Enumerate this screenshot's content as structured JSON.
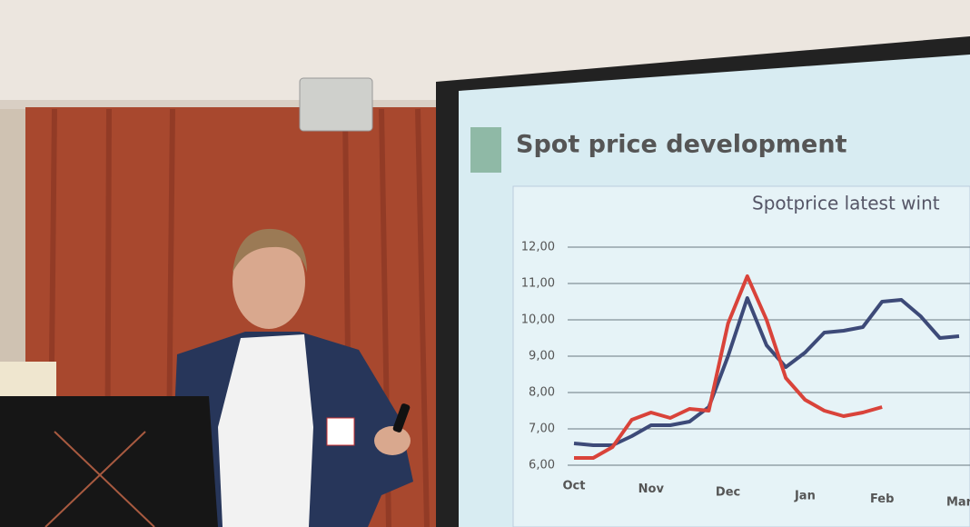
{
  "chart_data": {
    "type": "line",
    "title": "Spot price development",
    "subtitle": "Spotprice latest wint",
    "categories": [
      "Oct",
      null,
      null,
      null,
      "Nov",
      null,
      null,
      null,
      "Dec",
      null,
      null,
      null,
      "Jan",
      null,
      null,
      null,
      "Feb",
      null,
      null,
      null,
      "Mar"
    ],
    "series": [
      {
        "color": "#3d4a78",
        "values": [
          6.6,
          6.55,
          6.55,
          6.8,
          7.1,
          7.1,
          7.2,
          7.6,
          9.0,
          10.6,
          9.3,
          8.7,
          9.1,
          9.65,
          9.7,
          9.8,
          10.5,
          10.55,
          10.1,
          9.5,
          9.55
        ]
      },
      {
        "color": "#d9433a",
        "values": [
          6.2,
          6.2,
          6.5,
          7.25,
          7.45,
          7.3,
          7.55,
          7.5,
          9.9,
          11.2,
          10.0,
          8.4,
          7.8,
          7.5,
          7.35,
          7.45,
          7.6,
          null,
          null,
          null,
          null
        ]
      }
    ],
    "ylim": [
      6,
      12
    ],
    "yticks": [
      {
        "value": 6,
        "label": "6,00"
      },
      {
        "value": 7,
        "label": "7,00"
      },
      {
        "value": 8,
        "label": "8,00"
      },
      {
        "value": 9,
        "label": "9,00"
      },
      {
        "value": 10,
        "label": "10,00"
      },
      {
        "value": 11,
        "label": "11,00"
      },
      {
        "value": 12,
        "label": "12,00"
      }
    ],
    "grid": true
  }
}
